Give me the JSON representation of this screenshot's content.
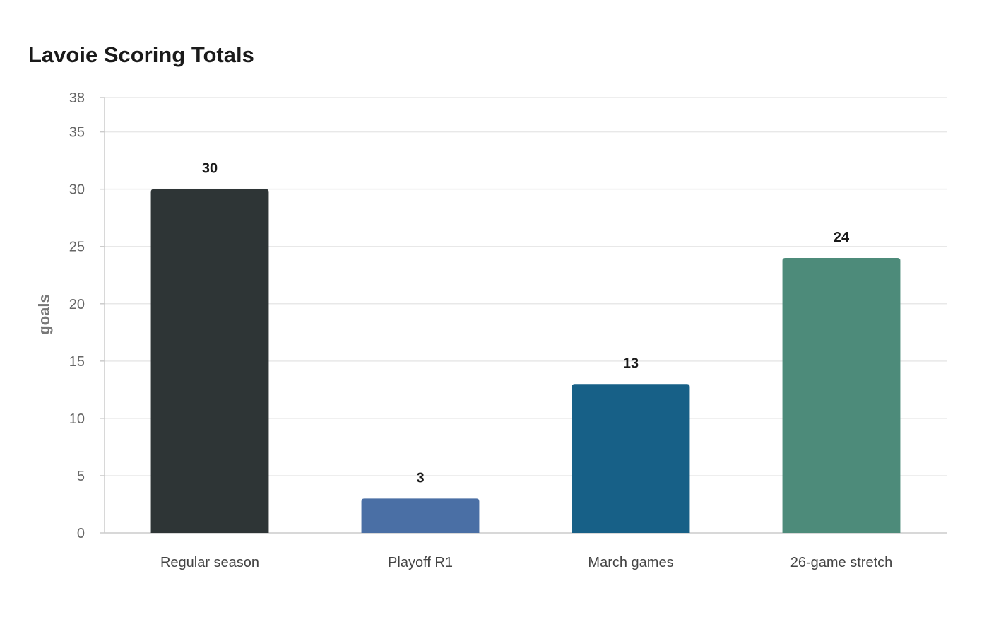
{
  "chart_data": {
    "type": "bar",
    "title": "Lavoie Scoring Totals",
    "xlabel": "",
    "ylabel": "goals",
    "categories": [
      "Regular season",
      "Playoff R1",
      "March games",
      "26-game stretch"
    ],
    "values": [
      30,
      3,
      13,
      24
    ],
    "colors": [
      "#2e3536",
      "#4a6fa5",
      "#176087",
      "#4d8b7a"
    ],
    "ylim": [
      0,
      38
    ],
    "yticks": [
      0,
      5,
      10,
      15,
      20,
      25,
      30,
      35,
      38
    ],
    "grid": true,
    "legend": "none",
    "data_labels": true
  }
}
